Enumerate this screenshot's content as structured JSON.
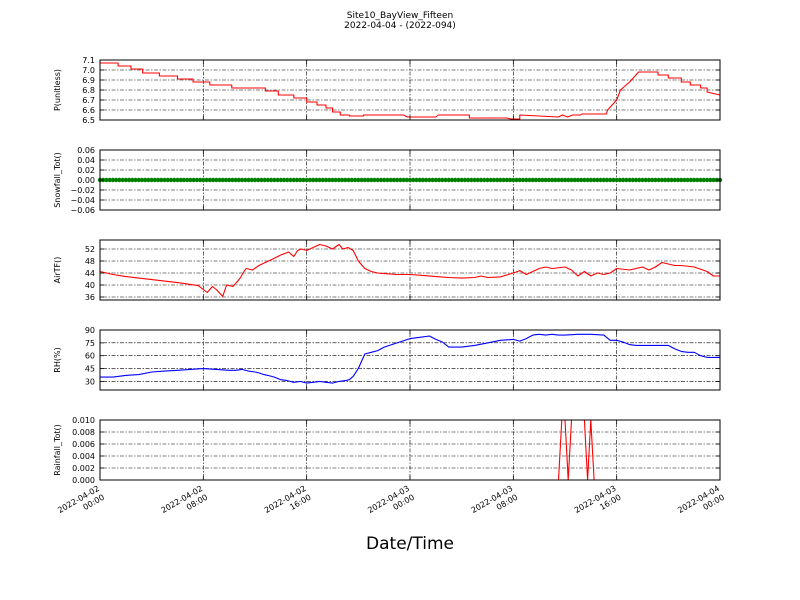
{
  "title": "Site10_BayView_Fifteen",
  "subtitle": "2022-04-04 - (2022-094)",
  "xlabel": "Date/Time",
  "colors": {
    "red": "#ff0000",
    "green": "#008000",
    "blue": "#0000ff",
    "axis": "#000000"
  },
  "x_ticks": [
    {
      "value": 0,
      "line1": "2022-04-02",
      "line2": "00:00"
    },
    {
      "value": 8,
      "line1": "2022-04-02",
      "line2": "08:00"
    },
    {
      "value": 16,
      "line1": "2022-04-02",
      "line2": "16:00"
    },
    {
      "value": 24,
      "line1": "2022-04-03",
      "line2": "00:00"
    },
    {
      "value": 32,
      "line1": "2022-04-03",
      "line2": "08:00"
    },
    {
      "value": 40,
      "line1": "2022-04-03",
      "line2": "16:00"
    },
    {
      "value": 48,
      "line1": "2022-04-04",
      "line2": "00:00"
    }
  ],
  "chart_data": [
    {
      "type": "line",
      "ylabel": "P(unitless)",
      "ylim": [
        6.5,
        7.1
      ],
      "yticks": [
        "6.5",
        "6.6",
        "6.7",
        "6.8",
        "6.9",
        "7.0",
        "7.1"
      ],
      "ytick_values": [
        6.5,
        6.6,
        6.7,
        6.8,
        6.9,
        7.0,
        7.1
      ],
      "grid": true,
      "series": [
        {
          "color": "#ff0000",
          "x": [
            0,
            1.4,
            1.4,
            2.4,
            2.4,
            3.3,
            3.3,
            4.6,
            4.6,
            6.0,
            6.0,
            7.2,
            7.2,
            8.5,
            8.5,
            10.2,
            10.2,
            12.8,
            12.8,
            13.8,
            13.8,
            15.0,
            15.0,
            16.0,
            16.0,
            16.8,
            16.8,
            17.5,
            17.5,
            18.0,
            18.0,
            18.6,
            18.6,
            19.3,
            19.3,
            20.4,
            20.4,
            23.5,
            23.8,
            26.0,
            26.2,
            28.6,
            28.6,
            29.0,
            29.0,
            31.5,
            31.8,
            32.5,
            32.5,
            35.5,
            35.8,
            36.2,
            36.6,
            37.2,
            37.3,
            39.2,
            39.3,
            40.0,
            40.3,
            41.0,
            41.7,
            43.2,
            43.2,
            44.0,
            44.0,
            45.0,
            45.0,
            45.7,
            45.7,
            46.5,
            46.5,
            47.0,
            47.0,
            48.0
          ],
          "y": [
            7.07,
            7.07,
            7.04,
            7.04,
            7.01,
            7.01,
            6.97,
            6.97,
            6.94,
            6.94,
            6.91,
            6.91,
            6.88,
            6.88,
            6.85,
            6.85,
            6.82,
            6.82,
            6.79,
            6.79,
            6.75,
            6.75,
            6.72,
            6.72,
            6.68,
            6.68,
            6.65,
            6.65,
            6.62,
            6.62,
            6.58,
            6.58,
            6.55,
            6.55,
            6.54,
            6.54,
            6.55,
            6.55,
            6.53,
            6.53,
            6.55,
            6.55,
            6.52,
            6.52,
            6.52,
            6.52,
            6.51,
            6.51,
            6.55,
            6.53,
            6.55,
            6.53,
            6.55,
            6.55,
            6.56,
            6.56,
            6.6,
            6.7,
            6.8,
            6.88,
            6.98,
            6.98,
            6.95,
            6.95,
            6.92,
            6.92,
            6.88,
            6.88,
            6.85,
            6.85,
            6.82,
            6.82,
            6.78,
            6.75
          ]
        }
      ]
    },
    {
      "type": "scatter",
      "ylabel": "Snowfall_Tot()",
      "ylim": [
        -0.06,
        0.06
      ],
      "yticks": [
        "−0.06",
        "−0.04",
        "−0.02",
        "0.00",
        "0.02",
        "0.04",
        "0.06"
      ],
      "ytick_values": [
        -0.06,
        -0.04,
        -0.02,
        0.0,
        0.02,
        0.04,
        0.06
      ],
      "grid": true,
      "series": [
        {
          "color": "#008000",
          "constant": 0.0,
          "x_start": 0,
          "x_end": 48,
          "x_step": 0.25
        }
      ]
    },
    {
      "type": "line",
      "ylabel": "AirTF()",
      "ylim": [
        35,
        55
      ],
      "yticks": [
        "36",
        "40",
        "44",
        "48",
        "52"
      ],
      "ytick_values": [
        36,
        40,
        44,
        48,
        52
      ],
      "grid": true,
      "series": [
        {
          "color": "#ff0000",
          "x": [
            0,
            1,
            2,
            3,
            4,
            5,
            6,
            7,
            7.6,
            8.0,
            8.3,
            8.7,
            9.0,
            9.5,
            9.8,
            10.3,
            10.8,
            11.3,
            11.8,
            12.3,
            12.8,
            13.3,
            14.0,
            14.6,
            15.0,
            15.3,
            15.6,
            16.0,
            16.5,
            17.0,
            17.5,
            18.0,
            18.5,
            18.8,
            19.2,
            19.6,
            20.0,
            20.5,
            21.0,
            21.5,
            22,
            23,
            24,
            25,
            26,
            27,
            28,
            29,
            29.5,
            30,
            31,
            32,
            32.5,
            33,
            34,
            34.5,
            35,
            36,
            36.5,
            37,
            37.5,
            38,
            38.5,
            39,
            39.5,
            40,
            41,
            42,
            42.5,
            43,
            43.5,
            44,
            44.5,
            45,
            46,
            47,
            47.5,
            48
          ],
          "y": [
            44.5,
            43.5,
            42.8,
            42.3,
            41.8,
            41.3,
            40.8,
            40.2,
            39.8,
            38.5,
            37.5,
            39.5,
            38.5,
            36.2,
            40.0,
            39.5,
            42.0,
            45.5,
            45.0,
            46.5,
            47.5,
            48.5,
            50.0,
            51.0,
            49.5,
            51.5,
            52.0,
            51.5,
            52.5,
            53.5,
            53.0,
            52.0,
            53.5,
            52.0,
            52.5,
            51.5,
            48.0,
            45.5,
            44.5,
            44.0,
            43.8,
            43.5,
            43.5,
            43.2,
            42.8,
            42.5,
            42.3,
            42.5,
            43.0,
            42.5,
            42.7,
            44.0,
            44.8,
            43.5,
            45.5,
            46.0,
            45.5,
            46.0,
            45.0,
            43.0,
            44.5,
            43.0,
            44.0,
            43.5,
            44.0,
            45.5,
            45.0,
            46.0,
            45.0,
            46.0,
            47.5,
            47.0,
            46.5,
            46.5,
            46.0,
            44.5,
            43.0,
            43.0
          ]
        }
      ]
    },
    {
      "type": "line",
      "ylabel": "RH(%)",
      "ylim": [
        20,
        90
      ],
      "yticks": [
        "30",
        "45",
        "60",
        "75",
        "90"
      ],
      "ytick_values": [
        30,
        45,
        60,
        75,
        90
      ],
      "grid": true,
      "series": [
        {
          "color": "#0000ff",
          "x": [
            0,
            1,
            2,
            3,
            4,
            5,
            6,
            7,
            8,
            9,
            10,
            10.5,
            11,
            11.5,
            12,
            12.3,
            12.7,
            13,
            13.5,
            14,
            14.5,
            15,
            15.5,
            16,
            16.5,
            17,
            17.5,
            18,
            18.5,
            19,
            19.3,
            19.6,
            20,
            20.5,
            21,
            21.5,
            22,
            23,
            24,
            25,
            25.5,
            26,
            26.5,
            27,
            28,
            29,
            30,
            31,
            32,
            32.5,
            33,
            33.5,
            34,
            34.5,
            35,
            35.5,
            36,
            37,
            38,
            39,
            39.5,
            40,
            40.5,
            41,
            41.5,
            42,
            43,
            44,
            44.5,
            45,
            45.5,
            46,
            46.5,
            47,
            48
          ],
          "y": [
            35,
            35,
            37,
            38,
            41,
            42,
            43,
            44,
            45,
            44,
            43,
            43,
            44,
            42,
            41,
            40,
            38,
            37,
            35,
            32,
            31,
            29,
            30,
            28,
            29,
            30,
            29,
            28,
            30,
            31,
            32,
            36,
            45,
            62,
            64,
            66,
            70,
            75,
            80,
            82,
            83,
            79,
            76,
            70,
            70,
            72,
            75,
            78,
            79,
            77,
            80,
            84,
            85,
            84,
            85,
            84,
            84,
            85,
            85,
            84,
            78,
            78,
            76,
            73,
            72,
            72,
            72,
            72,
            68,
            65,
            64,
            64,
            60,
            58,
            58
          ]
        }
      ]
    },
    {
      "type": "line",
      "ylabel": "Rainfall_Tot()",
      "ylim": [
        0.0,
        0.01
      ],
      "yticks": [
        "0.000",
        "0.002",
        "0.004",
        "0.006",
        "0.008",
        "0.010"
      ],
      "ytick_values": [
        0.0,
        0.002,
        0.004,
        0.006,
        0.008,
        0.01
      ],
      "grid": true,
      "series": [
        {
          "color": "#ff0000",
          "x": [
            0,
            35.5,
            35.75,
            36.0,
            36.25,
            36.5,
            36.75,
            37.0,
            37.25,
            37.5,
            37.75,
            38.0,
            38.25,
            48
          ],
          "y": [
            0,
            0,
            0.01,
            0.01,
            0,
            0.01,
            0.01,
            0.01,
            0.01,
            0.01,
            0,
            0.01,
            0,
            0
          ]
        }
      ]
    }
  ]
}
